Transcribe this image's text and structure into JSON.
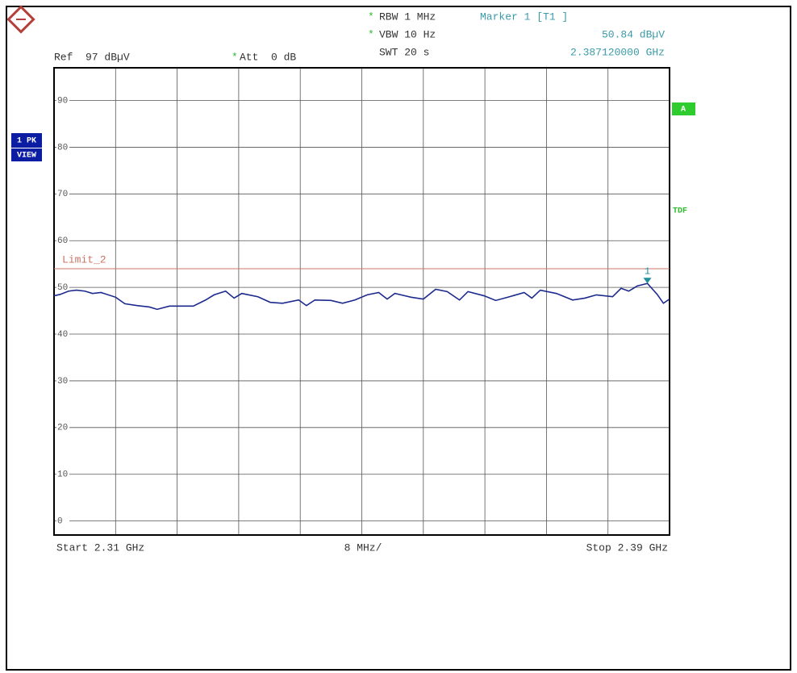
{
  "chart_data": {
    "type": "line",
    "header": {
      "asterisk": "*",
      "rbw": "RBW 1 MHz",
      "vbw": "VBW 10 Hz",
      "swt": "SWT 20 s",
      "marker_title": "Marker 1 [T1 ]",
      "marker_level": "50.84 dBµV",
      "marker_freq": "2.387120000 GHz",
      "ref": "Ref  97 dBµV",
      "att": "Att  0 dB"
    },
    "side_labels": {
      "trace_mode": "1 PK",
      "view": "VIEW",
      "a": "A",
      "tdf": "TDF"
    },
    "footer": {
      "start": "Start 2.31 GHz",
      "span_per_div": "8 MHz/",
      "stop": "Stop 2.39 GHz"
    },
    "xlim": [
      2.31,
      2.39
    ],
    "xticks": [
      2.31,
      2.318,
      2.326,
      2.334,
      2.342,
      2.35,
      2.358,
      2.366,
      2.374,
      2.382,
      2.39
    ],
    "ylim": [
      -3,
      97
    ],
    "yticks": [
      0,
      10,
      20,
      30,
      40,
      50,
      60,
      70,
      80,
      90
    ],
    "grid": true,
    "limit_line": {
      "name": "Limit_2",
      "value": 54,
      "color": "#c87466"
    },
    "marker": {
      "label": "1",
      "x": 2.38712,
      "value": 50.84,
      "color": "#1f8f9c"
    },
    "x": [
      2.31,
      2.3108,
      2.3119,
      2.3129,
      2.314,
      2.315,
      2.3161,
      2.318,
      2.3192,
      2.3208,
      2.3224,
      2.3234,
      2.325,
      2.3271,
      2.3281,
      2.3297,
      2.3308,
      2.3323,
      2.3334,
      2.3344,
      2.3365,
      2.3381,
      2.3397,
      2.3418,
      2.3428,
      2.3439,
      2.346,
      2.3475,
      2.3491,
      2.3507,
      2.3522,
      2.3533,
      2.3543,
      2.3564,
      2.358,
      2.3596,
      2.3611,
      2.3627,
      2.3638,
      2.3659,
      2.3674,
      2.369,
      2.3711,
      2.3721,
      2.3732,
      2.3753,
      2.3774,
      2.379,
      2.3805,
      2.3826,
      2.3837,
      2.3847,
      2.3858,
      2.38712,
      2.3884,
      2.3892,
      2.39
    ],
    "series": [
      {
        "color": "#1c2a8e",
        "values": [
          48.2,
          48.5,
          49.2,
          49.4,
          49.2,
          48.7,
          48.9,
          47.9,
          46.5,
          46.1,
          45.8,
          45.3,
          46.0,
          46.0,
          46.0,
          47.3,
          48.4,
          49.2,
          47.7,
          48.7,
          48.0,
          46.8,
          46.6,
          47.3,
          46.1,
          47.3,
          47.2,
          46.6,
          47.3,
          48.4,
          48.9,
          47.5,
          48.7,
          47.9,
          47.5,
          49.6,
          49.1,
          47.3,
          49.1,
          48.2,
          47.2,
          47.9,
          48.9,
          47.7,
          49.4,
          48.7,
          47.3,
          47.7,
          48.4,
          48.0,
          49.8,
          49.2,
          50.3,
          50.84,
          48.5,
          46.6,
          47.5
        ]
      }
    ]
  }
}
